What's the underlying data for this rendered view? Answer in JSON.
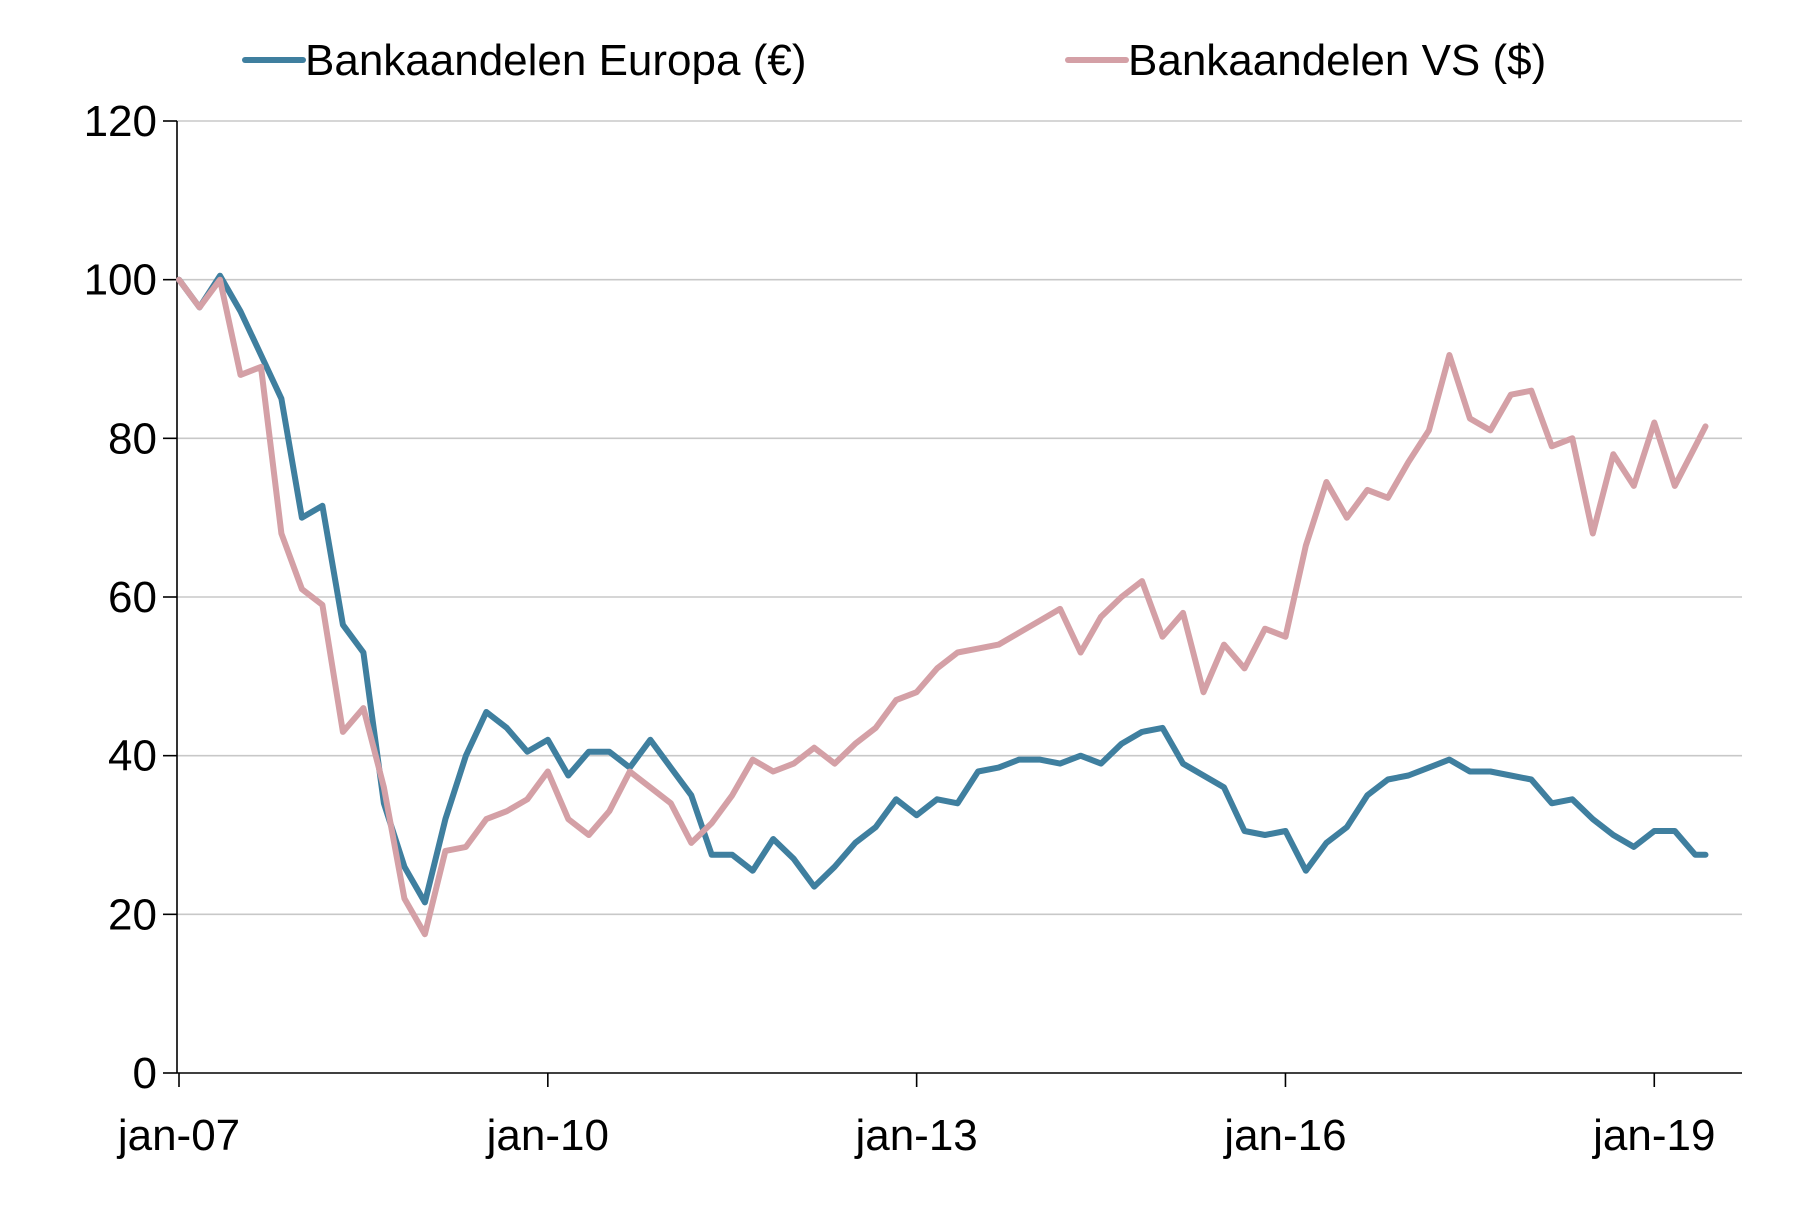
{
  "chart_data": {
    "type": "line",
    "title": "",
    "xlabel": "",
    "ylabel": "",
    "ylim": [
      0,
      120
    ],
    "yticks": [
      0,
      20,
      40,
      60,
      80,
      100,
      120
    ],
    "ytick_labels": [
      "0",
      "20",
      "40",
      "60",
      "80",
      "100",
      "120"
    ],
    "xticks": [
      {
        "month_index": 0,
        "label": "jan-07"
      },
      {
        "month_index": 36,
        "label": "jan-10"
      },
      {
        "month_index": 72,
        "label": "jan-13"
      },
      {
        "month_index": 108,
        "label": "jan-16"
      },
      {
        "month_index": 144,
        "label": "jan-19"
      }
    ],
    "x_start": "2007-01",
    "x_end": "2019-06",
    "grid": true,
    "legend_position": "top",
    "series": [
      {
        "name": "Bankaandelen Europa (€)",
        "color": "#3f7f9f",
        "x": [
          "2007-01",
          "2007-03",
          "2007-05",
          "2007-07",
          "2007-09",
          "2007-11",
          "2008-01",
          "2008-03",
          "2008-05",
          "2008-07",
          "2008-09",
          "2008-11",
          "2009-01",
          "2009-03",
          "2009-05",
          "2009-07",
          "2009-09",
          "2009-11",
          "2010-01",
          "2010-03",
          "2010-05",
          "2010-07",
          "2010-09",
          "2010-11",
          "2011-01",
          "2011-03",
          "2011-05",
          "2011-07",
          "2011-09",
          "2011-11",
          "2012-01",
          "2012-03",
          "2012-05",
          "2012-07",
          "2012-09",
          "2012-11",
          "2013-01",
          "2013-03",
          "2013-05",
          "2013-07",
          "2013-09",
          "2013-11",
          "2014-01",
          "2014-03",
          "2014-05",
          "2014-07",
          "2014-09",
          "2014-11",
          "2015-01",
          "2015-03",
          "2015-05",
          "2015-07",
          "2015-09",
          "2015-11",
          "2016-01",
          "2016-03",
          "2016-05",
          "2016-07",
          "2016-09",
          "2016-11",
          "2017-01",
          "2017-03",
          "2017-05",
          "2017-07",
          "2017-09",
          "2017-11",
          "2018-01",
          "2018-03",
          "2018-05",
          "2018-07",
          "2018-09",
          "2018-11",
          "2019-01",
          "2019-03",
          "2019-05",
          "2019-06"
        ],
        "values": [
          100,
          96.5,
          100.5,
          96,
          90.5,
          85,
          70,
          71.5,
          56.5,
          53,
          34,
          26,
          21.5,
          32,
          40,
          45.5,
          43.5,
          40.5,
          42,
          37.5,
          40.5,
          40.5,
          38.5,
          42,
          38.5,
          35,
          27.5,
          27.5,
          25.5,
          29.5,
          27,
          23.5,
          26,
          29,
          31,
          34.5,
          32.5,
          34.5,
          34,
          38,
          38.5,
          39.5,
          39.5,
          39,
          40,
          39,
          41.5,
          43,
          43.5,
          39,
          37.5,
          36,
          30.5,
          30,
          30.5,
          25.5,
          29,
          31,
          35,
          37,
          37.5,
          38.5,
          39.5,
          38,
          38,
          37.5,
          37,
          34,
          34.5,
          32,
          30,
          28.5,
          30.5,
          30.5,
          27.5,
          27.5
        ]
      },
      {
        "name": "Bankaandelen VS ($)",
        "color": "#d4a0a6",
        "x": [
          "2007-01",
          "2007-03",
          "2007-05",
          "2007-07",
          "2007-09",
          "2007-11",
          "2008-01",
          "2008-03",
          "2008-05",
          "2008-07",
          "2008-09",
          "2008-11",
          "2009-01",
          "2009-03",
          "2009-05",
          "2009-07",
          "2009-09",
          "2009-11",
          "2010-01",
          "2010-03",
          "2010-05",
          "2010-07",
          "2010-09",
          "2010-11",
          "2011-01",
          "2011-03",
          "2011-05",
          "2011-07",
          "2011-09",
          "2011-11",
          "2012-01",
          "2012-03",
          "2012-05",
          "2012-07",
          "2012-09",
          "2012-11",
          "2013-01",
          "2013-03",
          "2013-05",
          "2013-07",
          "2013-09",
          "2013-11",
          "2014-01",
          "2014-03",
          "2014-05",
          "2014-07",
          "2014-09",
          "2014-11",
          "2015-01",
          "2015-03",
          "2015-05",
          "2015-07",
          "2015-09",
          "2015-11",
          "2016-01",
          "2016-03",
          "2016-05",
          "2016-07",
          "2016-09",
          "2016-11",
          "2017-01",
          "2017-03",
          "2017-05",
          "2017-07",
          "2017-09",
          "2017-11",
          "2018-01",
          "2018-03",
          "2018-05",
          "2018-07",
          "2018-09",
          "2018-11",
          "2019-01",
          "2019-03",
          "2019-05",
          "2019-06"
        ],
        "values": [
          100,
          96.5,
          100,
          88,
          89,
          68,
          61,
          59,
          43,
          46,
          36,
          22,
          17.5,
          28,
          28.5,
          32,
          33,
          34.5,
          38,
          32,
          30,
          33,
          38,
          36,
          34,
          29,
          31.5,
          35,
          39.5,
          38,
          39,
          41,
          39,
          41.5,
          43.5,
          47,
          48,
          51,
          53,
          53.5,
          54,
          55.5,
          57,
          58.5,
          53,
          57.5,
          60,
          62,
          55,
          58,
          48,
          54,
          51,
          56,
          55,
          66.5,
          74.5,
          70,
          73.5,
          72.5,
          77,
          81,
          90.5,
          82.5,
          81,
          85.5,
          86,
          79,
          80,
          68,
          78,
          74,
          82,
          74,
          79,
          81.5
        ]
      }
    ]
  }
}
